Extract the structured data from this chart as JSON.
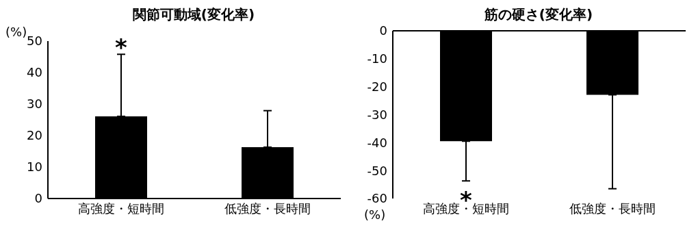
{
  "chart_data": [
    {
      "type": "bar",
      "title": "関節可動域(変化率)",
      "ylabel": "(%)",
      "categories": [
        "高強度・短時間",
        "低強度・長時間"
      ],
      "values": [
        26.1,
        16.3
      ],
      "color": "#000000",
      "errors": [
        [
          26.1,
          45.8
        ],
        [
          16.3,
          27.9
        ]
      ],
      "ylim": [
        0,
        50
      ],
      "yticks": [
        0,
        10,
        20,
        30,
        40,
        50
      ],
      "annotations": [
        "*"
      ]
    },
    {
      "type": "bar",
      "title": "筋の硬さ(変化率)",
      "ylabel": "(%)",
      "categories": [
        "高強度・短時間",
        "低強度・長時間"
      ],
      "values": [
        -39.5,
        -22.9
      ],
      "color": "#000000",
      "errors": [
        [
          -53.7,
          -39.5
        ],
        [
          -56.5,
          -22.9
        ]
      ],
      "ylim": [
        -60,
        0
      ],
      "yticks": [
        -60,
        -50,
        -40,
        -30,
        -20,
        -10,
        0
      ],
      "annotations": [
        "*"
      ]
    }
  ]
}
